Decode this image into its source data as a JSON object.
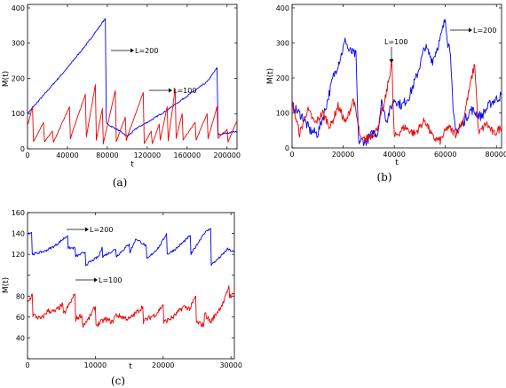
{
  "colors": {
    "L200": "#0000ee",
    "L100": "#ee0000"
  },
  "chart_data": [
    {
      "type": "line",
      "caption": "(a)",
      "xlabel": "t",
      "ylabel": "M(t)",
      "xlim": [
        0,
        210000
      ],
      "ylim": [
        0,
        410
      ],
      "xticks": [
        0,
        40000,
        80000,
        120000,
        160000,
        200000
      ],
      "xtick_labels": [
        "0",
        "40000",
        "80000",
        "120000",
        "160000",
        "200000"
      ],
      "yticks": [
        0,
        100,
        200,
        300,
        400
      ],
      "ytick_labels": [
        "0",
        "100",
        "200",
        "300",
        "400"
      ],
      "series": [
        {
          "name": "L=200",
          "color": "blue",
          "x": [
            0,
            20000,
            40000,
            60000,
            78000,
            79000,
            80000,
            90000,
            100000,
            110000,
            120000,
            140000,
            160000,
            180000,
            190000,
            191000,
            192000,
            200000,
            210000
          ],
          "y": [
            100,
            165,
            230,
            300,
            370,
            75,
            70,
            55,
            35,
            60,
            75,
            110,
            150,
            190,
            230,
            45,
            40,
            45,
            50
          ],
          "noise": 2
        },
        {
          "name": "L=100",
          "color": "red",
          "x": [
            0,
            5000,
            6000,
            16000,
            17000,
            25000,
            26000,
            42000,
            43000,
            58000,
            59000,
            68000,
            69000,
            75000,
            76000,
            88000,
            89000,
            98000,
            99000,
            116000,
            117000,
            124000,
            125000,
            132000,
            133000,
            140000,
            141000,
            148000,
            149000,
            155000,
            156000,
            168000,
            169000,
            180000,
            181000,
            190000,
            191000,
            200000,
            201000,
            210000
          ],
          "y": [
            65,
            120,
            20,
            75,
            20,
            50,
            18,
            120,
            30,
            155,
            35,
            182,
            25,
            115,
            15,
            165,
            20,
            90,
            25,
            160,
            15,
            50,
            15,
            70,
            25,
            120,
            22,
            170,
            30,
            100,
            25,
            75,
            25,
            100,
            30,
            120,
            30,
            55,
            20,
            80
          ],
          "noise": 1.5
        }
      ],
      "annotations": [
        {
          "text": "L=200",
          "series": "L=200"
        },
        {
          "text": "L=100",
          "series": "L=100"
        }
      ]
    },
    {
      "type": "line",
      "caption": "(b)",
      "xlabel": "t",
      "ylabel": "M(t)",
      "xlim": [
        0,
        82000
      ],
      "ylim": [
        0,
        410
      ],
      "xticks": [
        0,
        20000,
        40000,
        60000,
        80000
      ],
      "xtick_labels": [
        "0",
        "20000",
        "40000",
        "60000",
        "80000"
      ],
      "yticks": [
        0,
        100,
        200,
        300,
        400
      ],
      "ytick_labels": [
        "0",
        "100",
        "200",
        "300",
        "400"
      ],
      "series": [
        {
          "name": "L=200",
          "color": "blue",
          "x": [
            0,
            4000,
            7000,
            10000,
            13000,
            16000,
            19000,
            21000,
            22000,
            24000,
            25000,
            26000,
            29000,
            32000,
            33500,
            35000,
            37000,
            40000,
            43000,
            46000,
            49000,
            52000,
            55000,
            58000,
            60000,
            61000,
            62000,
            63000,
            64000,
            66000,
            70000,
            74000,
            78000,
            82000
          ],
          "y": [
            120,
            90,
            50,
            40,
            110,
            200,
            260,
            310,
            280,
            270,
            265,
            20,
            20,
            45,
            40,
            130,
            80,
            140,
            120,
            150,
            210,
            290,
            250,
            310,
            370,
            300,
            280,
            100,
            50,
            60,
            110,
            90,
            130,
            150
          ],
          "noise": 14
        },
        {
          "name": "L=100",
          "color": "red",
          "x": [
            0,
            3000,
            6000,
            9000,
            12000,
            15000,
            18000,
            21000,
            24000,
            27000,
            30000,
            33000,
            36000,
            38000,
            39000,
            40000,
            44000,
            48000,
            52000,
            55000,
            58000,
            61000,
            64000,
            67000,
            70000,
            71500,
            73000,
            76000,
            79000,
            82000
          ],
          "y": [
            130,
            40,
            110,
            70,
            100,
            60,
            120,
            70,
            140,
            20,
            30,
            50,
            120,
            200,
            250,
            30,
            60,
            40,
            80,
            30,
            20,
            60,
            40,
            80,
            190,
            240,
            40,
            70,
            40,
            60
          ],
          "noise": 12
        }
      ],
      "annotations": [
        {
          "text": "L=200",
          "series": "L=200"
        },
        {
          "text": "L=100",
          "series": "L=100"
        }
      ]
    },
    {
      "type": "line",
      "caption": "(c)",
      "xlabel": "t",
      "ylabel": "M(t)",
      "xlim": [
        0,
        30500
      ],
      "ylim": [
        20,
        160
      ],
      "xticks": [
        0,
        10000,
        20000,
        30000
      ],
      "xtick_labels": [
        "0",
        "10000",
        "20000",
        "30000"
      ],
      "yticks": [
        20,
        40,
        60,
        80,
        100,
        120,
        140,
        160
      ],
      "ytick_labels": [
        "",
        "40",
        "60",
        "80",
        "",
        "120",
        "140",
        "160"
      ],
      "series": [
        {
          "name": "L=200",
          "color": "blue",
          "x": [
            0,
            600,
            700,
            2500,
            4000,
            5900,
            6000,
            7000,
            7100,
            8500,
            8600,
            10500,
            11000,
            11100,
            13000,
            13100,
            15000,
            15100,
            16000,
            17500,
            17600,
            19500,
            20500,
            20600,
            22000,
            24000,
            24100,
            25800,
            26000,
            27000,
            27100,
            28500,
            29500,
            30500
          ],
          "y": [
            140,
            141,
            120,
            123,
            128,
            138,
            126,
            126,
            118,
            122,
            110,
            118,
            127,
            118,
            125,
            118,
            130,
            122,
            135,
            128,
            115,
            128,
            140,
            120,
            126,
            138,
            120,
            138,
            140,
            145,
            110,
            118,
            125,
            122
          ],
          "noise": 1.2
        },
        {
          "name": "L=100",
          "color": "red",
          "x": [
            0,
            700,
            800,
            2000,
            3000,
            4000,
            5200,
            5300,
            6500,
            7000,
            7100,
            8000,
            8100,
            9000,
            10000,
            10100,
            11500,
            12500,
            13000,
            15000,
            17000,
            17100,
            19000,
            20000,
            20100,
            21500,
            23000,
            24000,
            24800,
            24900,
            26000,
            26100,
            27000,
            29000,
            29700,
            29800,
            30500
          ],
          "y": [
            73,
            82,
            62,
            58,
            66,
            65,
            72,
            62,
            76,
            82,
            58,
            62,
            52,
            58,
            70,
            52,
            58,
            55,
            62,
            58,
            70,
            56,
            63,
            72,
            55,
            60,
            70,
            68,
            80,
            55,
            52,
            64,
            55,
            75,
            90,
            80,
            82
          ],
          "noise": 2.5
        }
      ],
      "annotations": [
        {
          "text": "L=200",
          "series": "L=200"
        },
        {
          "text": "L=100",
          "series": "L=100"
        }
      ]
    }
  ]
}
